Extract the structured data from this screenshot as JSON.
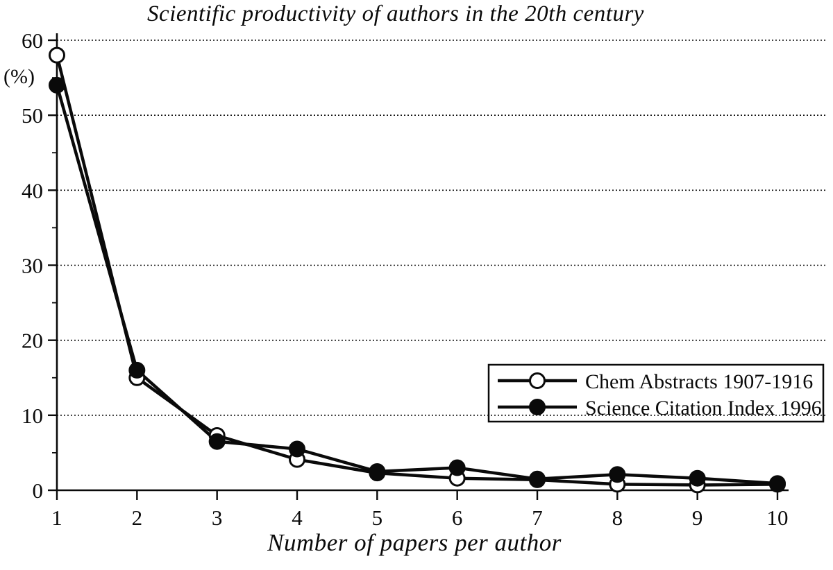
{
  "chart_data": {
    "type": "line",
    "title": "Scientific productivity of authors in the 20th century",
    "xlabel": "Number of papers per author",
    "ylabel": "(%)",
    "x": [
      1,
      2,
      3,
      4,
      5,
      6,
      7,
      8,
      9,
      10
    ],
    "xticks": [
      1,
      2,
      3,
      4,
      5,
      6,
      7,
      8,
      9,
      10
    ],
    "yticks": [
      0,
      10,
      20,
      30,
      40,
      50,
      60
    ],
    "y_minor_tick_step": 5,
    "xlim": [
      1,
      10
    ],
    "ylim": [
      0,
      60
    ],
    "grid": "dotted-horizontal",
    "legend_position": "inside-right-above-axis",
    "ink_color": "#0a0a0a",
    "background_color": "#ffffff",
    "series": [
      {
        "name": "Chem Abstracts 1907-1916",
        "marker": "open-circle",
        "values": [
          58,
          15,
          7.3,
          4.1,
          2.3,
          1.6,
          1.4,
          0.8,
          0.7,
          0.8
        ]
      },
      {
        "name": "Science Citation Index 1996",
        "marker": "filled-circle",
        "values": [
          54,
          16,
          6.5,
          5.5,
          2.5,
          3.0,
          1.5,
          2.1,
          1.6,
          0.9
        ]
      }
    ]
  }
}
